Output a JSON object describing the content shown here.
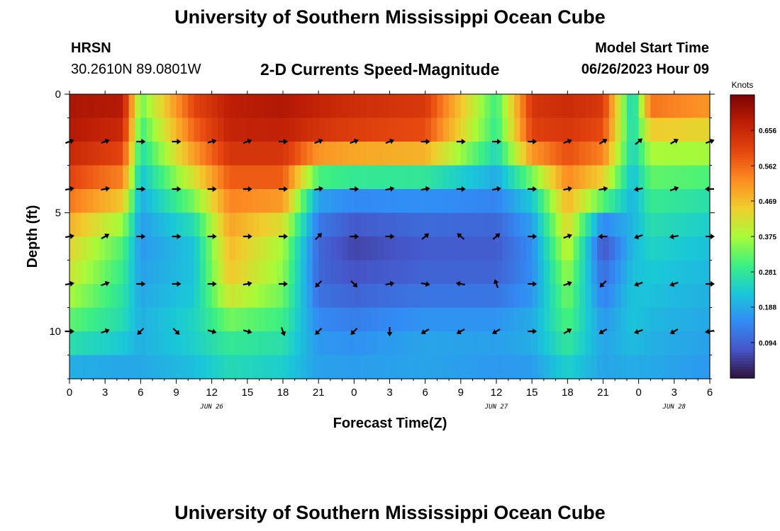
{
  "header": {
    "title": "University of Southern Mississippi Ocean Cube",
    "station": "HRSN",
    "coords": "30.2610N  89.0801W",
    "subtitle": "2-D Currents Speed-Magnitude",
    "model_label": "Model Start Time",
    "model_time": "06/26/2023 Hour 09"
  },
  "footer": {
    "title": "University of Southern Mississippi Ocean Cube"
  },
  "chart_data": {
    "type": "heatmap",
    "title": "2-D Currents Speed-Magnitude",
    "xlabel": "Forecast Time(Z)",
    "ylabel": "Depth (ft)",
    "x_tick_labels": [
      "0",
      "3",
      "6",
      "9",
      "12",
      "15",
      "18",
      "21",
      "0",
      "3",
      "6",
      "9",
      "12",
      "15",
      "18",
      "21",
      "0",
      "3",
      "6"
    ],
    "x_tick_hours": [
      0,
      3,
      6,
      9,
      12,
      15,
      18,
      21,
      24,
      27,
      30,
      33,
      36,
      39,
      42,
      45,
      48,
      51,
      54
    ],
    "x_range_hours": [
      0,
      54
    ],
    "date_labels": [
      {
        "text": "JUN 26",
        "hour": 12
      },
      {
        "text": "JUN 27",
        "hour": 36
      },
      {
        "text": "JUN 28",
        "hour": 51
      }
    ],
    "y_ticks": [
      0,
      5,
      10
    ],
    "y_tick_labels": [
      "0",
      "5",
      "10"
    ],
    "y_range_ft": [
      0,
      12
    ],
    "colorbar": {
      "unit": "Knots",
      "tick_labels": [
        "0.656",
        "0.562",
        "0.469",
        "0.375",
        "0.281",
        "0.188",
        "0.094"
      ],
      "tick_values": [
        0.656,
        0.562,
        0.469,
        0.375,
        0.281,
        0.188,
        0.094
      ],
      "range": [
        0.0,
        0.75
      ]
    },
    "key_hours": [
      0,
      4.5,
      6,
      10.5,
      13.5,
      18,
      21,
      24,
      30,
      36,
      39,
      42,
      45,
      47.5,
      49,
      54
    ],
    "key_depths_ft": [
      0,
      2,
      4,
      6,
      8,
      10,
      12
    ],
    "speed_key_knots": [
      [
        0.7,
        0.7,
        0.35,
        0.62,
        0.68,
        0.7,
        0.68,
        0.66,
        0.64,
        0.3,
        0.64,
        0.66,
        0.64,
        0.22,
        0.6,
        0.55
      ],
      [
        0.68,
        0.64,
        0.28,
        0.55,
        0.66,
        0.66,
        0.62,
        0.6,
        0.58,
        0.28,
        0.6,
        0.62,
        0.58,
        0.25,
        0.4,
        0.4
      ],
      [
        0.58,
        0.5,
        0.2,
        0.38,
        0.55,
        0.55,
        0.2,
        0.18,
        0.18,
        0.16,
        0.25,
        0.5,
        0.4,
        0.2,
        0.3,
        0.28
      ],
      [
        0.45,
        0.32,
        0.16,
        0.22,
        0.48,
        0.38,
        0.1,
        0.05,
        0.08,
        0.08,
        0.15,
        0.42,
        0.06,
        0.2,
        0.25,
        0.22
      ],
      [
        0.4,
        0.28,
        0.18,
        0.22,
        0.45,
        0.35,
        0.1,
        0.08,
        0.1,
        0.1,
        0.15,
        0.35,
        0.12,
        0.22,
        0.22,
        0.2
      ],
      [
        0.3,
        0.25,
        0.2,
        0.25,
        0.3,
        0.28,
        0.16,
        0.15,
        0.18,
        0.18,
        0.2,
        0.3,
        0.18,
        0.22,
        0.2,
        0.18
      ],
      [
        0.16,
        0.16,
        0.18,
        0.2,
        0.24,
        0.22,
        0.18,
        0.18,
        0.18,
        0.16,
        0.16,
        0.22,
        0.18,
        0.18,
        0.18,
        0.16
      ]
    ],
    "arrow_hours": [
      0,
      3,
      6,
      9,
      12,
      15,
      18,
      21,
      24,
      27,
      30,
      33,
      36,
      39,
      42,
      45,
      48,
      51,
      54
    ],
    "arrow_depths_ft": [
      2,
      4,
      6,
      8,
      10
    ],
    "arrow_direction_deg": [
      [
        20,
        20,
        0,
        0,
        15,
        20,
        0,
        20,
        20,
        20,
        0,
        0,
        0,
        0,
        20,
        30,
        40,
        30,
        20
      ],
      [
        10,
        10,
        0,
        0,
        0,
        0,
        0,
        10,
        0,
        10,
        10,
        0,
        10,
        0,
        10,
        10,
        190,
        20,
        180
      ],
      [
        10,
        30,
        0,
        0,
        0,
        0,
        0,
        45,
        0,
        0,
        40,
        140,
        40,
        0,
        20,
        180,
        200,
        190,
        0
      ],
      [
        10,
        20,
        0,
        0,
        0,
        10,
        0,
        225,
        315,
        10,
        350,
        170,
        110,
        0,
        20,
        225,
        200,
        200,
        0
      ],
      [
        0,
        20,
        225,
        315,
        345,
        345,
        290,
        225,
        225,
        270,
        210,
        210,
        210,
        0,
        30,
        210,
        200,
        210,
        190
      ]
    ]
  }
}
